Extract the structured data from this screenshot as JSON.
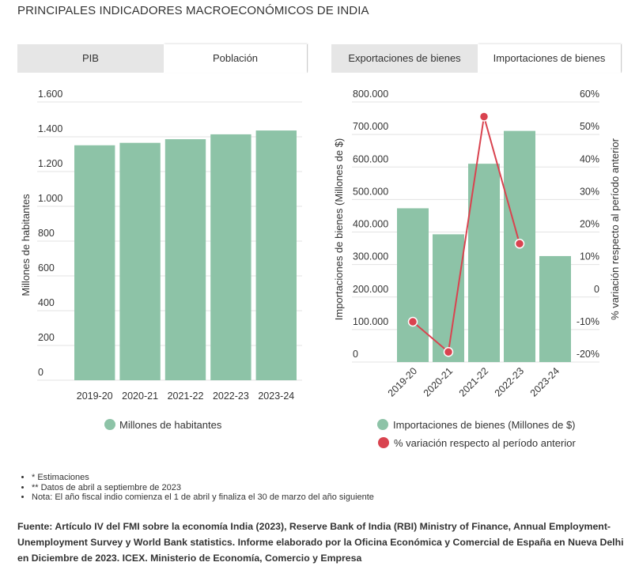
{
  "title": "PRINCIPALES INDICADORES MACROECONÓMICOS DE INDIA",
  "left_panel": {
    "tabs": [
      {
        "label": "PIB",
        "active": false
      },
      {
        "label": "Población",
        "active": true
      }
    ]
  },
  "right_panel": {
    "tabs": [
      {
        "label": "Exportaciones de bienes",
        "active": false
      },
      {
        "label": "Importaciones de bienes",
        "active": true
      }
    ]
  },
  "colors": {
    "bar": "#8dc3a7",
    "line": "#d9434f",
    "grid": "#e3e3e3"
  },
  "chart_data": [
    {
      "type": "bar",
      "categories": [
        "2019-20",
        "2020-21",
        "2021-22",
        "2022-23",
        "2023-24"
      ],
      "values": [
        1351,
        1365,
        1386,
        1414,
        1436
      ],
      "ylabel": "Millones de habitantes",
      "ylim": [
        0,
        1600
      ],
      "yticks": [
        0,
        200,
        400,
        600,
        800,
        1000,
        1200,
        1400,
        1600
      ],
      "ytick_labels": [
        "0",
        "200",
        "400",
        "600",
        "800",
        "1.000",
        "1.200",
        "1.400",
        "1.600"
      ],
      "legend": [
        "Millones de habitantes"
      ],
      "legend_position": "bottom",
      "grid": true
    },
    {
      "type": "bar+line",
      "categories": [
        "2019-20",
        "2020-21",
        "2021-22",
        "2022-23",
        "2023-24"
      ],
      "series": [
        {
          "name": "Importaciones de bienes (Millones de $)",
          "type": "bar",
          "axis": "left",
          "values": [
            473000,
            393000,
            610000,
            711000,
            326000
          ]
        },
        {
          "name": "% variación respecto al período anterior",
          "type": "line",
          "axis": "right",
          "values": [
            -7.6,
            -16.9,
            55.5,
            16.4,
            null
          ]
        }
      ],
      "ylabel": "Importaciones de bienes (Millones de $)",
      "ylabel_right": "% variación respecto al período anterior",
      "ylim": [
        0,
        800000
      ],
      "ylim_right": [
        -20,
        60
      ],
      "yticks": [
        0,
        100000,
        200000,
        300000,
        400000,
        500000,
        600000,
        700000,
        800000
      ],
      "ytick_labels": [
        "0",
        "100.000",
        "200.000",
        "300.000",
        "400.000",
        "500.000",
        "600.000",
        "700.000",
        "800.000"
      ],
      "yticks_right": [
        -20,
        -10,
        0,
        10,
        20,
        30,
        40,
        50,
        60
      ],
      "ytick_labels_right": [
        "-20%",
        "-10%",
        "0",
        "10%",
        "20%",
        "30%",
        "40%",
        "50%",
        "60%"
      ],
      "legend": [
        "Importaciones de bienes (Millones de $)",
        "% variación respecto al período anterior"
      ],
      "legend_position": "bottom",
      "grid": true
    }
  ],
  "notes": [
    "* Estimaciones",
    "** Datos de abril a septiembre de 2023",
    "Nota: El año fiscal indio comienza el 1 de abril y finaliza el 30 de marzo del año siguiente"
  ],
  "source": "Fuente: Artículo IV del FMI sobre la economía India (2023), Reserve Bank of India (RBI) Ministry of Finance, Annual Employment-Unemployment Survey y World Bank statistics. Informe elaborado por la Oficina Económica y Comercial de España en Nueva Delhi en Diciembre de 2023. ICEX. Ministerio de Economía, Comercio y Empresa"
}
